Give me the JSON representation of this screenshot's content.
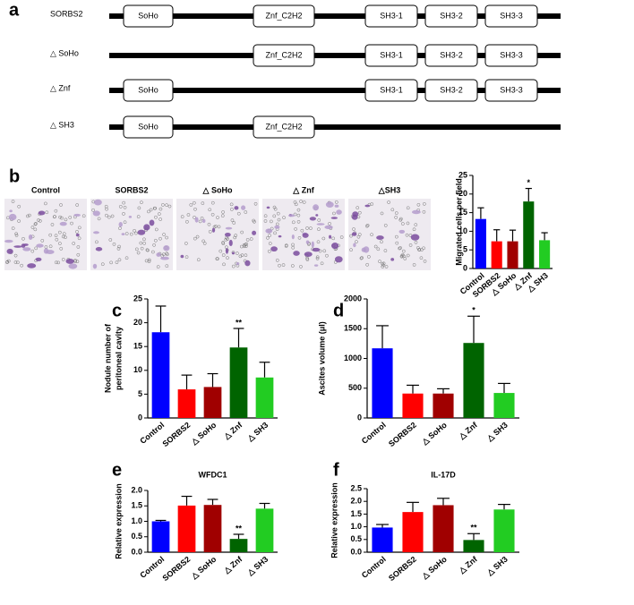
{
  "panel_labels": [
    "a",
    "b",
    "c",
    "d",
    "e",
    "f"
  ],
  "domain_diagram": {
    "rows": [
      {
        "name": "SORBS2",
        "domains": [
          "SoHo",
          "Znf_C2H2",
          "SH3-1",
          "SH3-2",
          "SH3-3"
        ]
      },
      {
        "name": "△ SoHo",
        "domains": [
          "Znf_C2H2",
          "SH3-1",
          "SH3-2",
          "SH3-3"
        ]
      },
      {
        "name": "△ Znf",
        "domains": [
          "SoHo",
          "SH3-1",
          "SH3-2",
          "SH3-3"
        ]
      },
      {
        "name": "△ SH3",
        "domains": [
          "SoHo",
          "Znf_C2H2"
        ]
      }
    ]
  },
  "micrographs": {
    "labels": [
      "Control",
      "SORBS2",
      "△ SoHo",
      "△ Znf",
      "△SH3"
    ]
  },
  "chart_data": [
    {
      "type": "bar",
      "ylabel": "Migrated cells per field",
      "categories": [
        "Control",
        "SORBS2",
        "△ SoHo",
        "△ Znf",
        "△ SH3"
      ],
      "values": [
        13.3,
        7.3,
        7.3,
        18,
        7.6
      ],
      "errors": [
        3,
        3.1,
        3,
        3.5,
        2
      ],
      "colors": [
        "#0000ff",
        "#ff0000",
        "#a00000",
        "#006400",
        "#22cc22"
      ],
      "significance": [
        null,
        null,
        null,
        "*",
        null
      ],
      "ylim": [
        0,
        25
      ],
      "yticks": [
        0,
        5,
        10,
        15,
        20,
        25
      ]
    },
    {
      "type": "bar",
      "ylabel": [
        "Nodule number of",
        "peritoneal cavity"
      ],
      "categories": [
        "Control",
        "SORBS2",
        "△ SoHo",
        "△ Znf",
        "△ SH3"
      ],
      "values": [
        18,
        6,
        6.5,
        14.8,
        8.5
      ],
      "errors": [
        5.5,
        3,
        2.8,
        4,
        3.2
      ],
      "colors": [
        "#0000ff",
        "#ff0000",
        "#a00000",
        "#006400",
        "#22cc22"
      ],
      "significance": [
        null,
        null,
        null,
        "**",
        null
      ],
      "ylim": [
        0,
        25
      ],
      "yticks": [
        0,
        5,
        10,
        15,
        20,
        25
      ]
    },
    {
      "type": "bar",
      "ylabel": "Ascites volume (μl)",
      "categories": [
        "Control",
        "SORBS2",
        "△ SoHo",
        "△ Znf",
        "△ SH3"
      ],
      "values": [
        1170,
        410,
        410,
        1260,
        420
      ],
      "errors": [
        380,
        140,
        80,
        450,
        160
      ],
      "colors": [
        "#0000ff",
        "#ff0000",
        "#a00000",
        "#006400",
        "#22cc22"
      ],
      "significance": [
        null,
        null,
        null,
        "*",
        null
      ],
      "ylim": [
        0,
        2000
      ],
      "yticks": [
        0,
        500,
        1000,
        1500,
        2000
      ]
    },
    {
      "type": "bar",
      "title": "WFDC1",
      "ylabel": "Relative expression",
      "categories": [
        "Control",
        "SORBS2",
        "△ SoHo",
        "△ Znf",
        "△ SH3"
      ],
      "values": [
        1.0,
        1.51,
        1.53,
        0.43,
        1.41
      ],
      "errors": [
        0.03,
        0.3,
        0.18,
        0.15,
        0.17
      ],
      "colors": [
        "#0000ff",
        "#ff0000",
        "#a00000",
        "#006400",
        "#22cc22"
      ],
      "significance": [
        null,
        null,
        null,
        "**",
        null
      ],
      "ylim": [
        0,
        2.0
      ],
      "yticks": [
        {
          "value": 0,
          "label": "0.0"
        },
        0.5,
        {
          "value": 1,
          "label": "1.0"
        },
        1.5,
        {
          "value": 2,
          "label": "2.0"
        }
      ]
    },
    {
      "type": "bar",
      "title": "IL-17D",
      "ylabel": "Relative expression",
      "categories": [
        "Control",
        "SORBS2",
        "△ SoHo",
        "△ Znf",
        "△ SH3"
      ],
      "values": [
        0.97,
        1.58,
        1.85,
        0.48,
        1.68
      ],
      "errors": [
        0.12,
        0.38,
        0.27,
        0.25,
        0.2
      ],
      "colors": [
        "#0000ff",
        "#ff0000",
        "#a00000",
        "#006400",
        "#22cc22"
      ],
      "significance": [
        null,
        null,
        null,
        "**",
        null
      ],
      "ylim": [
        0,
        2.5
      ],
      "yticks": [
        {
          "value": 0,
          "label": "0.0"
        },
        0.5,
        {
          "value": 1,
          "label": "1.0"
        },
        1.5,
        {
          "value": 2,
          "label": "2.0"
        },
        2.5
      ]
    }
  ]
}
